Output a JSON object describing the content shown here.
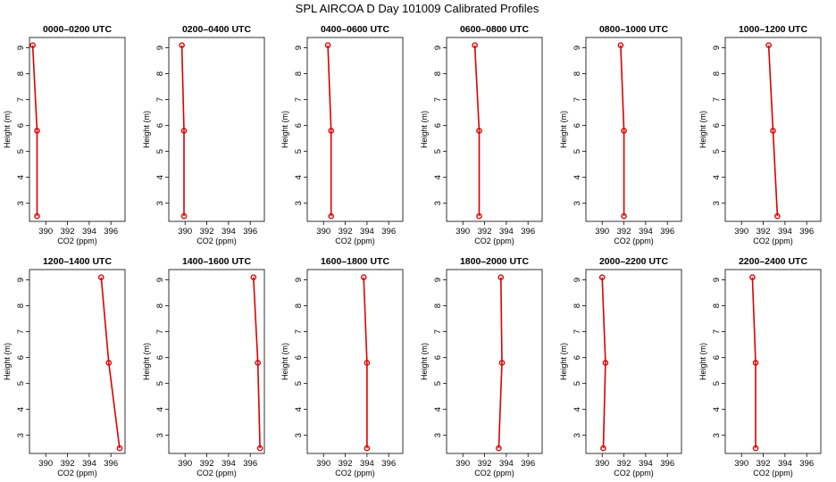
{
  "chart_data": {
    "type": "line",
    "title": "SPL AIRCOA D  Day 101009  Calibrated Profiles",
    "xlabel": "CO2 (ppm)",
    "ylabel": "Height (m)",
    "xlim": [
      388.5,
      397.3
    ],
    "ylim": [
      2.3,
      9.4
    ],
    "xticks": [
      390,
      392,
      394,
      396
    ],
    "yticks": [
      3,
      4,
      5,
      6,
      7,
      8,
      9
    ],
    "grid": false,
    "color": "#dd0000",
    "panels": [
      {
        "title": "0000–0200 UTC",
        "points": [
          {
            "x": 388.8,
            "y": 9.1
          },
          {
            "x": 389.2,
            "y": 5.8
          },
          {
            "x": 389.2,
            "y": 2.5
          }
        ]
      },
      {
        "title": "0200–0400 UTC",
        "points": [
          {
            "x": 389.7,
            "y": 9.1
          },
          {
            "x": 389.9,
            "y": 5.8
          },
          {
            "x": 389.9,
            "y": 2.5
          }
        ]
      },
      {
        "title": "0400–0600 UTC",
        "points": [
          {
            "x": 390.4,
            "y": 9.1
          },
          {
            "x": 390.7,
            "y": 5.8
          },
          {
            "x": 390.7,
            "y": 2.5
          }
        ]
      },
      {
        "title": "0600–0800 UTC",
        "points": [
          {
            "x": 391.1,
            "y": 9.1
          },
          {
            "x": 391.5,
            "y": 5.8
          },
          {
            "x": 391.5,
            "y": 2.5
          }
        ]
      },
      {
        "title": "0800–1000 UTC",
        "points": [
          {
            "x": 391.7,
            "y": 9.1
          },
          {
            "x": 392.0,
            "y": 5.8
          },
          {
            "x": 392.0,
            "y": 2.5
          }
        ]
      },
      {
        "title": "1000–1200 UTC",
        "points": [
          {
            "x": 392.5,
            "y": 9.1
          },
          {
            "x": 392.9,
            "y": 5.8
          },
          {
            "x": 393.3,
            "y": 2.5
          }
        ]
      },
      {
        "title": "1200–1400 UTC",
        "points": [
          {
            "x": 395.1,
            "y": 9.1
          },
          {
            "x": 395.8,
            "y": 5.8
          },
          {
            "x": 396.8,
            "y": 2.5
          }
        ]
      },
      {
        "title": "1400–1600 UTC",
        "points": [
          {
            "x": 396.3,
            "y": 9.1
          },
          {
            "x": 396.7,
            "y": 5.8
          },
          {
            "x": 396.9,
            "y": 2.5
          }
        ]
      },
      {
        "title": "1600–1800 UTC",
        "points": [
          {
            "x": 393.7,
            "y": 9.1
          },
          {
            "x": 394.0,
            "y": 5.8
          },
          {
            "x": 394.0,
            "y": 2.5
          }
        ]
      },
      {
        "title": "1800–2000 UTC",
        "points": [
          {
            "x": 393.5,
            "y": 9.1
          },
          {
            "x": 393.6,
            "y": 5.8
          },
          {
            "x": 393.3,
            "y": 2.5
          }
        ]
      },
      {
        "title": "2000–2200 UTC",
        "points": [
          {
            "x": 390.0,
            "y": 9.1
          },
          {
            "x": 390.3,
            "y": 5.8
          },
          {
            "x": 390.1,
            "y": 2.5
          }
        ]
      },
      {
        "title": "2200–2400 UTC",
        "points": [
          {
            "x": 391.0,
            "y": 9.1
          },
          {
            "x": 391.3,
            "y": 5.8
          },
          {
            "x": 391.3,
            "y": 2.5
          }
        ]
      }
    ]
  }
}
